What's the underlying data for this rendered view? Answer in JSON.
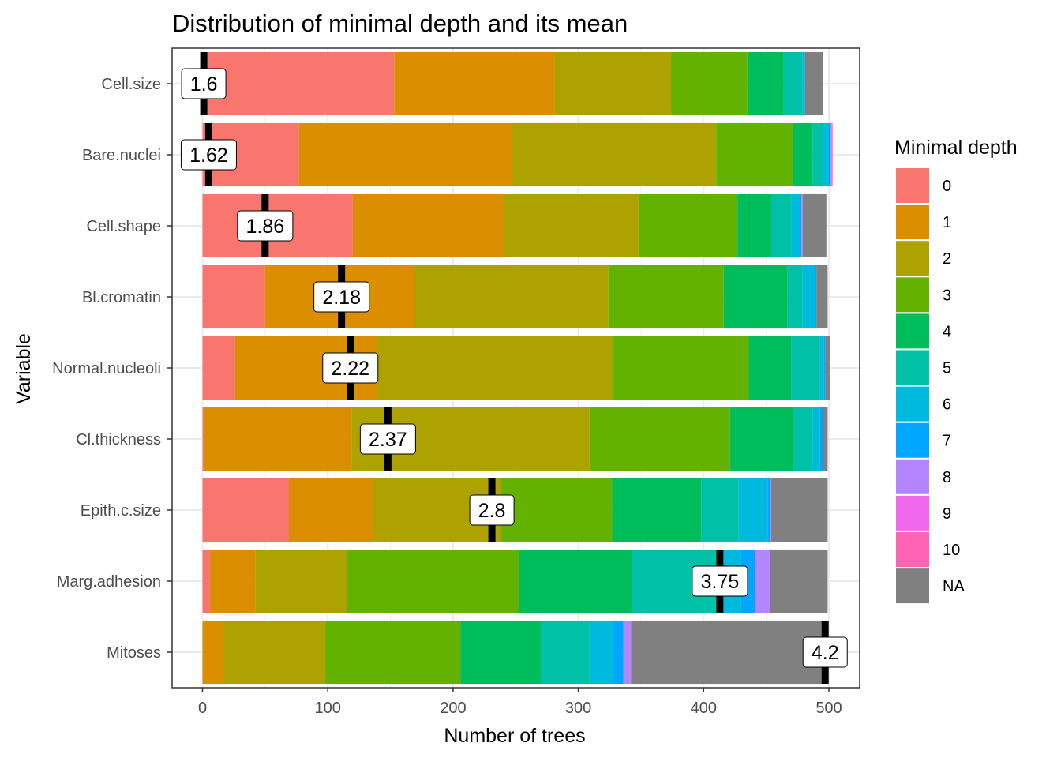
{
  "chart_data": {
    "type": "bar",
    "orientation": "horizontal",
    "stacked": true,
    "title": "Distribution of minimal depth and its mean",
    "xlabel": "Number of trees",
    "ylabel": "Variable",
    "xlim": [
      -25,
      520
    ],
    "xticks": [
      0,
      100,
      200,
      300,
      400,
      500
    ],
    "grid": true,
    "legend_title": "Minimal depth",
    "legend_position": "right",
    "categories": [
      "Cell.size",
      "Bare.nuclei",
      "Cell.shape",
      "Bl.cromatin",
      "Normal.nucleoli",
      "Cl.thickness",
      "Epith.c.size",
      "Marg.adhesion",
      "Mitoses"
    ],
    "series": [
      {
        "name": "0",
        "color": "#F8766D",
        "values": [
          153,
          77,
          120,
          50,
          26,
          1,
          69,
          6,
          0
        ]
      },
      {
        "name": "1",
        "color": "#DB8E00",
        "values": [
          128,
          170,
          121,
          119,
          113,
          118,
          67,
          36,
          17
        ]
      },
      {
        "name": "2",
        "color": "#AEA200",
        "values": [
          93,
          163,
          107,
          155,
          188,
          190,
          102,
          73,
          81
        ]
      },
      {
        "name": "3",
        "color": "#64B200",
        "values": [
          61,
          61,
          79,
          92,
          109,
          112,
          89,
          138,
          108
        ]
      },
      {
        "name": "4",
        "color": "#00BD5C",
        "values": [
          29,
          16,
          27,
          51,
          34,
          51,
          71,
          90,
          64
        ]
      },
      {
        "name": "5",
        "color": "#00C1A7",
        "values": [
          15,
          8,
          16,
          12,
          23,
          15,
          30,
          73,
          39
        ]
      },
      {
        "name": "6",
        "color": "#00BADE",
        "values": [
          2,
          5,
          7,
          10,
          3,
          6,
          23,
          14,
          19
        ]
      },
      {
        "name": "7",
        "color": "#00A6FF",
        "values": [
          0,
          1,
          1,
          1,
          1,
          2,
          2,
          11,
          8
        ]
      },
      {
        "name": "8",
        "color": "#B385FF",
        "values": [
          0,
          1,
          1,
          0,
          0,
          0,
          1,
          12,
          6
        ]
      },
      {
        "name": "9",
        "color": "#EF67EB",
        "values": [
          0,
          1,
          0,
          0,
          0,
          0,
          0,
          0,
          0
        ]
      },
      {
        "name": "10",
        "color": "#FF63B6",
        "values": [
          0,
          0,
          0,
          0,
          0,
          0,
          0,
          0,
          0
        ]
      },
      {
        "name": "NA",
        "color": "#808080",
        "values": [
          14,
          0,
          19,
          9,
          4,
          4,
          45,
          46,
          157
        ]
      }
    ],
    "mean_labels": [
      "1.6",
      "1.62",
      "1.86",
      "2.18",
      "2.22",
      "2.37",
      "2.8",
      "3.75",
      "4.2"
    ],
    "mean_positions": [
      1,
      5,
      50,
      111,
      118,
      148,
      231,
      413,
      497
    ]
  }
}
